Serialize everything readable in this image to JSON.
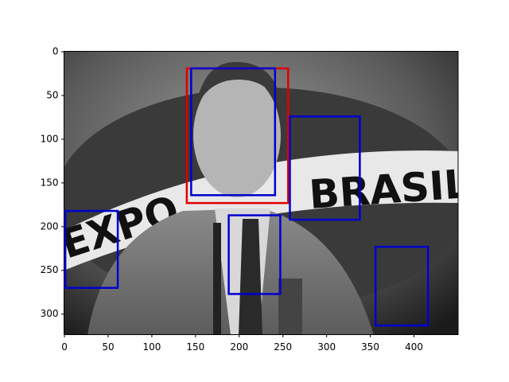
{
  "chart_data": {
    "type": "image",
    "image_texts": [
      "EXPO",
      "BRASIL"
    ],
    "xlim": [
      -0.5,
      450.5
    ],
    "ylim": [
      323.5,
      -0.5
    ],
    "xticks": [
      0,
      50,
      100,
      150,
      200,
      250,
      300,
      350,
      400
    ],
    "yticks": [
      0,
      50,
      100,
      150,
      200,
      250,
      300
    ],
    "boxes": [
      {
        "color": "#e00000",
        "x0": 140,
        "y0": 19,
        "x1": 256,
        "y1": 173
      },
      {
        "color": "#0000d0",
        "x0": 145,
        "y0": 19,
        "x1": 241,
        "y1": 164
      },
      {
        "color": "#0000d0",
        "x0": 258,
        "y0": 74,
        "x1": 338,
        "y1": 192
      },
      {
        "color": "#0000d0",
        "x0": 1,
        "y0": 182,
        "x1": 61,
        "y1": 270
      },
      {
        "color": "#0000d0",
        "x0": 188,
        "y0": 187,
        "x1": 247,
        "y1": 277
      },
      {
        "color": "#0000d0",
        "x0": 356,
        "y0": 223,
        "x1": 416,
        "y1": 313
      }
    ]
  }
}
